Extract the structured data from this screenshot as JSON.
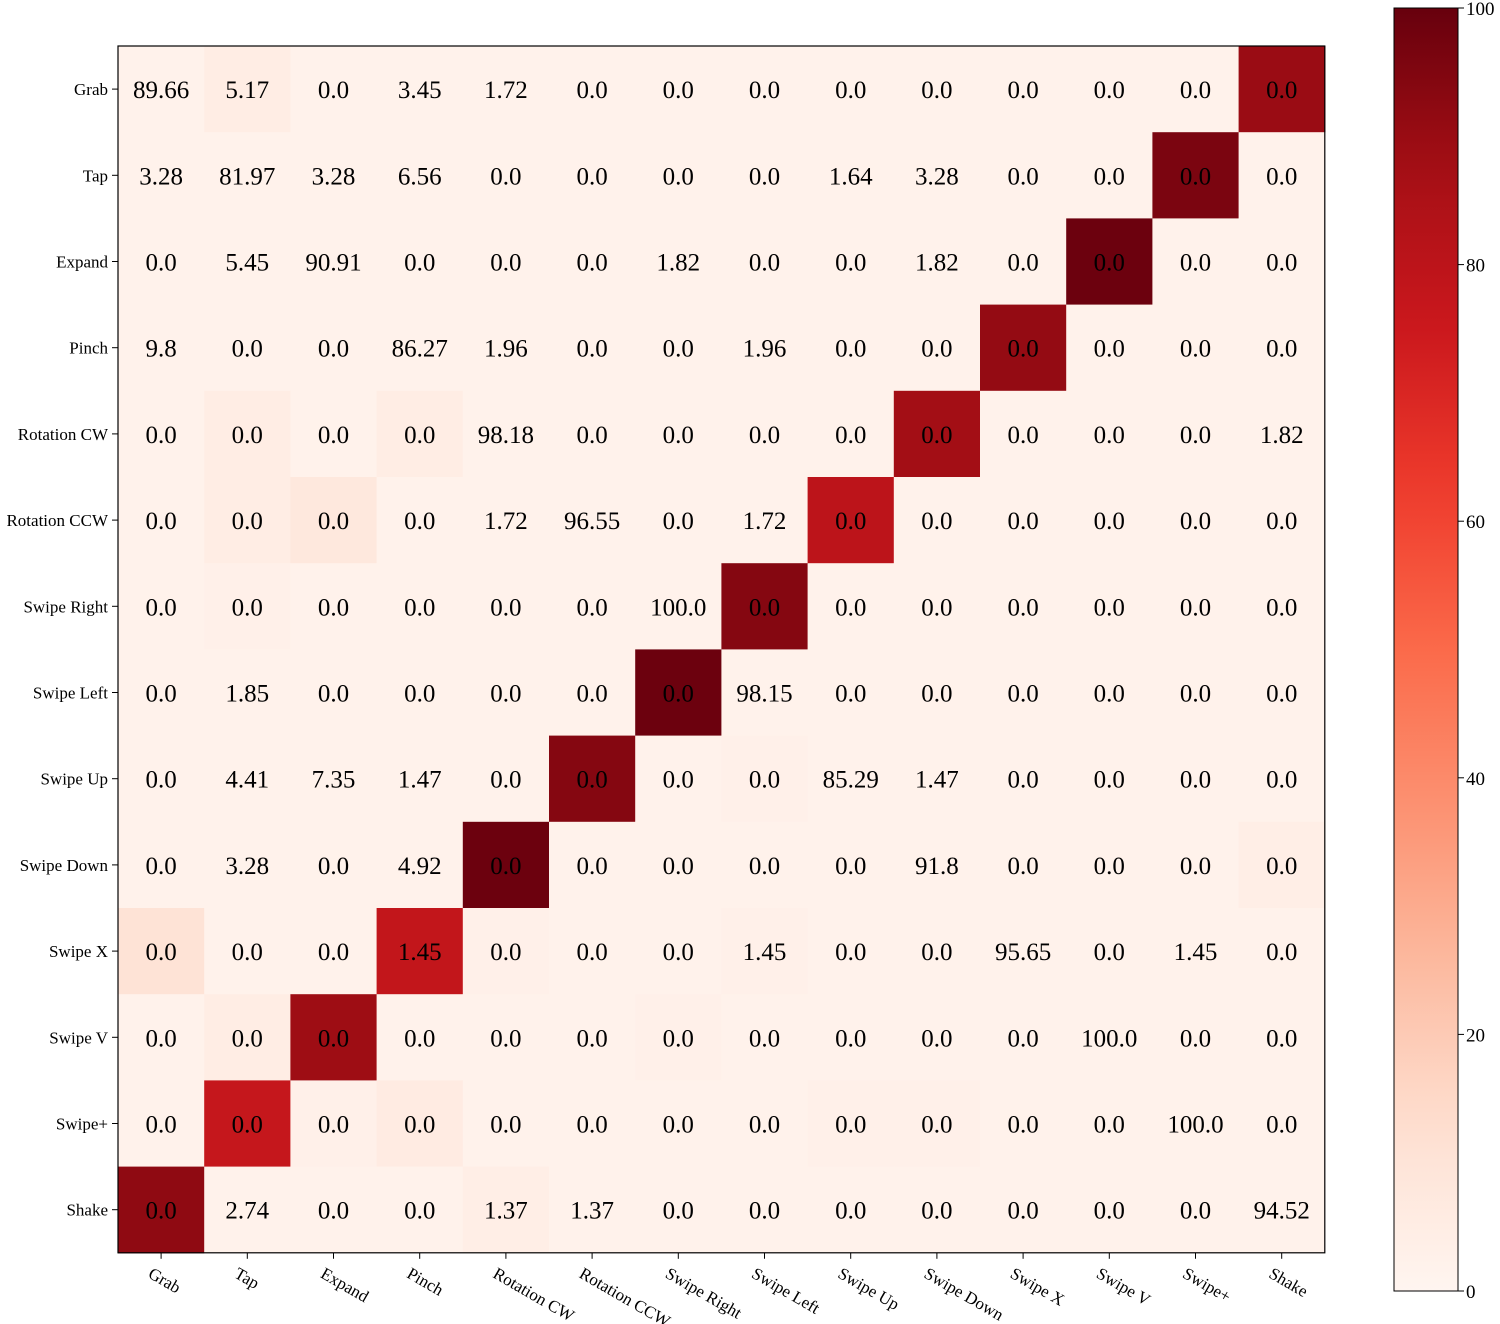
{
  "chart_data": {
    "type": "heatmap",
    "title": "",
    "xlabel": "",
    "ylabel": "",
    "row_labels": [
      "Grab",
      "Tap",
      "Expand",
      "Pinch",
      "Rotation CW",
      "Rotation CCW",
      "Swipe Right",
      "Swipe Left",
      "Swipe Up",
      "Swipe Down",
      "Swipe X",
      "Swipe V",
      "Swipe+",
      "Shake"
    ],
    "col_labels": [
      "Grab",
      "Tap",
      "Expand",
      "Pinch",
      "Rotation CW",
      "Rotation CCW",
      "Swipe Right",
      "Swipe Left",
      "Swipe Up",
      "Swipe Down",
      "Swipe X",
      "Swipe V",
      "Swipe+",
      "Shake"
    ],
    "cell_text": [
      [
        "89.66",
        "5.17",
        "0.0",
        "3.45",
        "1.72",
        "0.0",
        "0.0",
        "0.0",
        "0.0",
        "0.0",
        "0.0",
        "0.0",
        "0.0",
        "0.0"
      ],
      [
        "3.28",
        "81.97",
        "3.28",
        "6.56",
        "0.0",
        "0.0",
        "0.0",
        "0.0",
        "1.64",
        "3.28",
        "0.0",
        "0.0",
        "0.0",
        "0.0"
      ],
      [
        "0.0",
        "5.45",
        "90.91",
        "0.0",
        "0.0",
        "0.0",
        "1.82",
        "0.0",
        "0.0",
        "1.82",
        "0.0",
        "0.0",
        "0.0",
        "0.0"
      ],
      [
        "9.8",
        "0.0",
        "0.0",
        "86.27",
        "1.96",
        "0.0",
        "0.0",
        "1.96",
        "0.0",
        "0.0",
        "0.0",
        "0.0",
        "0.0",
        "0.0"
      ],
      [
        "0.0",
        "0.0",
        "0.0",
        "0.0",
        "98.18",
        "0.0",
        "0.0",
        "0.0",
        "0.0",
        "0.0",
        "0.0",
        "0.0",
        "0.0",
        "1.82"
      ],
      [
        "0.0",
        "0.0",
        "0.0",
        "0.0",
        "1.72",
        "96.55",
        "0.0",
        "1.72",
        "0.0",
        "0.0",
        "0.0",
        "0.0",
        "0.0",
        "0.0"
      ],
      [
        "0.0",
        "0.0",
        "0.0",
        "0.0",
        "0.0",
        "0.0",
        "100.0",
        "0.0",
        "0.0",
        "0.0",
        "0.0",
        "0.0",
        "0.0",
        "0.0"
      ],
      [
        "0.0",
        "1.85",
        "0.0",
        "0.0",
        "0.0",
        "0.0",
        "0.0",
        "98.15",
        "0.0",
        "0.0",
        "0.0",
        "0.0",
        "0.0",
        "0.0"
      ],
      [
        "0.0",
        "4.41",
        "7.35",
        "1.47",
        "0.0",
        "0.0",
        "0.0",
        "0.0",
        "85.29",
        "1.47",
        "0.0",
        "0.0",
        "0.0",
        "0.0"
      ],
      [
        "0.0",
        "3.28",
        "0.0",
        "4.92",
        "0.0",
        "0.0",
        "0.0",
        "0.0",
        "0.0",
        "91.8",
        "0.0",
        "0.0",
        "0.0",
        "0.0"
      ],
      [
        "0.0",
        "0.0",
        "0.0",
        "1.45",
        "0.0",
        "0.0",
        "0.0",
        "1.45",
        "0.0",
        "0.0",
        "95.65",
        "0.0",
        "1.45",
        "0.0"
      ],
      [
        "0.0",
        "0.0",
        "0.0",
        "0.0",
        "0.0",
        "0.0",
        "0.0",
        "0.0",
        "0.0",
        "0.0",
        "0.0",
        "100.0",
        "0.0",
        "0.0"
      ],
      [
        "0.0",
        "0.0",
        "0.0",
        "0.0",
        "0.0",
        "0.0",
        "0.0",
        "0.0",
        "0.0",
        "0.0",
        "0.0",
        "0.0",
        "100.0",
        "0.0"
      ],
      [
        "0.0",
        "2.74",
        "0.0",
        "0.0",
        "1.37",
        "1.37",
        "0.0",
        "0.0",
        "0.0",
        "0.0",
        "0.0",
        "0.0",
        "0.0",
        "94.52"
      ]
    ],
    "color_values": [
      [
        2,
        5,
        2,
        2,
        2,
        2,
        2,
        2,
        2,
        2,
        2,
        2,
        2,
        89.66
      ],
      [
        2,
        2,
        2,
        2,
        2,
        2,
        2,
        2,
        2,
        2,
        2,
        2,
        96,
        2
      ],
      [
        2,
        2,
        2,
        2,
        2,
        2,
        2,
        2,
        2,
        2,
        2,
        99,
        2,
        2
      ],
      [
        2,
        2,
        2,
        2,
        2,
        2,
        2,
        2,
        2,
        2,
        91,
        2,
        2,
        2
      ],
      [
        2,
        5,
        2,
        5,
        2,
        2,
        2,
        2,
        2,
        88,
        2,
        2,
        2,
        2
      ],
      [
        2,
        5,
        8,
        2,
        2,
        2,
        2,
        2,
        80,
        2,
        2,
        2,
        2,
        2
      ],
      [
        2,
        3,
        2,
        2,
        2,
        2,
        2,
        94,
        2,
        2,
        2,
        2,
        2,
        2
      ],
      [
        2,
        2,
        2,
        2,
        2,
        2,
        99,
        2,
        2,
        2,
        2,
        2,
        2,
        2
      ],
      [
        2,
        2,
        2,
        2,
        2,
        94,
        2,
        3,
        2,
        2,
        2,
        2,
        2,
        2
      ],
      [
        2,
        2,
        2,
        2,
        99,
        2,
        2,
        2,
        2,
        2,
        2,
        2,
        2,
        4
      ],
      [
        11,
        2,
        2,
        78,
        3,
        2,
        2,
        3,
        2,
        2,
        2,
        2,
        2,
        2
      ],
      [
        2,
        5,
        89,
        2,
        2,
        2,
        3,
        2,
        2,
        2,
        2,
        2,
        2,
        2
      ],
      [
        2,
        77,
        3,
        6,
        2,
        2,
        2,
        2,
        3,
        3,
        2,
        2,
        2,
        2
      ],
      [
        92,
        2,
        2,
        2,
        4,
        2,
        2,
        2,
        2,
        2,
        2,
        2,
        2,
        2
      ]
    ],
    "colormap": "Reds",
    "colorbar": {
      "min": 0,
      "max": 100,
      "ticks": [
        "0",
        "20",
        "40",
        "60",
        "80",
        "100"
      ]
    },
    "grid": false
  }
}
